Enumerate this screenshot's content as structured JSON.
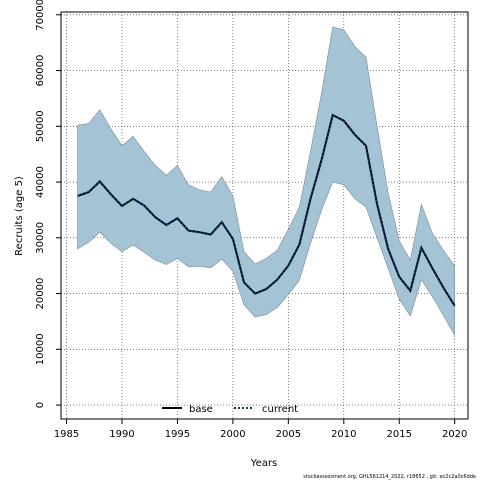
{
  "chart_data": {
    "type": "area",
    "xlabel": "Years",
    "ylabel": "Recruits (age 5)",
    "xlim": [
      1984.5,
      2021.2
    ],
    "ylim": [
      -2500,
      70500
    ],
    "x_ticks": [
      1985,
      1990,
      1995,
      2000,
      2005,
      2010,
      2015,
      2020
    ],
    "y_ticks": [
      0,
      10000,
      20000,
      30000,
      40000,
      50000,
      60000,
      70000
    ],
    "grid": "dotted",
    "legend": {
      "position": "bottom-center"
    },
    "x": [
      1986,
      1987,
      1988,
      1989,
      1990,
      1991,
      1992,
      1993,
      1994,
      1995,
      1996,
      1997,
      1998,
      1999,
      2000,
      2001,
      2002,
      2003,
      2004,
      2005,
      2006,
      2007,
      2008,
      2009,
      2010,
      2011,
      2012,
      2013,
      2014,
      2015,
      2016,
      2017,
      2018,
      2019,
      2020
    ],
    "series": [
      {
        "name": "base",
        "color": "#000000",
        "style": "solid",
        "values": [
          37500,
          38200,
          40100,
          37800,
          35700,
          37000,
          35800,
          33700,
          32300,
          33500,
          31300,
          31000,
          30600,
          32800,
          29800,
          22000,
          20000,
          20800,
          22500,
          25000,
          28800,
          37000,
          44000,
          52000,
          51000,
          48500,
          46500,
          36000,
          28000,
          23000,
          20500,
          28200,
          24500,
          21000,
          17800
        ]
      },
      {
        "name": "current",
        "color": "#0b3a6e",
        "style": "dotted",
        "values": [
          37500,
          38200,
          40100,
          37800,
          35700,
          37000,
          35800,
          33700,
          32300,
          33500,
          31300,
          31000,
          30600,
          32800,
          29800,
          22000,
          20000,
          20800,
          22500,
          25000,
          28800,
          37000,
          44000,
          52000,
          51000,
          48500,
          46500,
          36000,
          28000,
          23000,
          20500,
          28200,
          24500,
          21000,
          17800
        ]
      }
    ],
    "band": {
      "color": "#a4c4d6",
      "upper": [
        50200,
        50500,
        53000,
        49500,
        46500,
        48200,
        45500,
        43000,
        41200,
        43000,
        39500,
        38600,
        38200,
        41000,
        37500,
        27500,
        25300,
        26300,
        27800,
        31500,
        35500,
        45500,
        56000,
        67800,
        67300,
        64300,
        62400,
        50000,
        38000,
        29500,
        26000,
        36000,
        30800,
        27700,
        25000
      ],
      "lower": [
        28000,
        29200,
        31000,
        29000,
        27500,
        28700,
        27400,
        26000,
        25200,
        26300,
        24800,
        24900,
        24600,
        26200,
        24000,
        18000,
        15800,
        16200,
        17500,
        19800,
        22400,
        29000,
        35000,
        40000,
        39500,
        37000,
        35500,
        30000,
        24500,
        19000,
        16000,
        22500,
        19400,
        16000,
        12500
      ]
    }
  },
  "footer": "stockassessment.org, GHL561214_2022, r18652 , git: ec2c2a0c6dde"
}
